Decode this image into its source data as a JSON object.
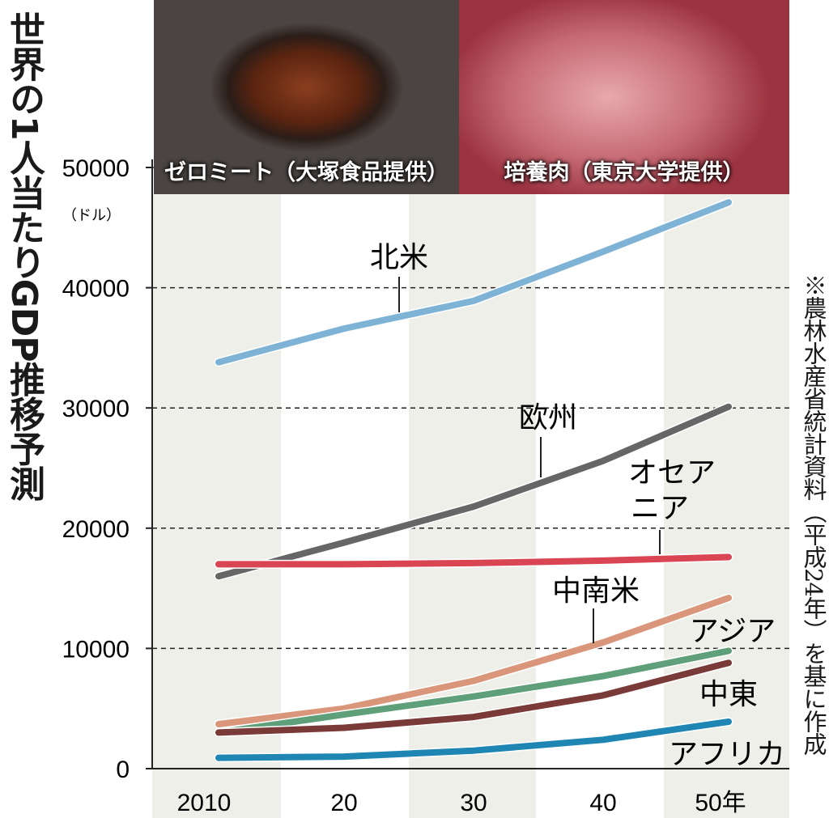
{
  "title": "世界の1人当たりGDP推移予測",
  "note": "※農林水産省統計資料（平成24年）を基に作成",
  "photos": [
    {
      "caption": "ゼロミート（大塚食品提供）"
    },
    {
      "caption": "培養肉（東京大学提供）"
    }
  ],
  "chart_data": {
    "type": "line",
    "title": "世界の1人当たりGDP推移予測",
    "ylabel": "（ドル）",
    "categories": [
      "2010",
      "20",
      "30",
      "40",
      "50年"
    ],
    "ylim": [
      0,
      50000
    ],
    "yticks": [
      "0",
      "10000",
      "20000",
      "30000",
      "40000",
      "50000"
    ],
    "grid": "dashed horizontal at 10000 steps",
    "series": [
      {
        "name": "北米",
        "color": "#7fb3d6",
        "values": [
          33800,
          36600,
          38900,
          43000,
          47100
        ]
      },
      {
        "name": "欧州",
        "color": "#666666",
        "values": [
          16000,
          18800,
          21800,
          25600,
          30100
        ]
      },
      {
        "name": "オセアニア",
        "color": "#d94552",
        "values": [
          17000,
          17000,
          17100,
          17300,
          17600
        ]
      },
      {
        "name": "中南米",
        "color": "#d9967a",
        "values": [
          3700,
          5000,
          7300,
          10500,
          14200
        ]
      },
      {
        "name": "アジア",
        "color": "#5f9f7a",
        "values": [
          3000,
          4500,
          6000,
          7700,
          9800
        ]
      },
      {
        "name": "中東",
        "color": "#7a3a38",
        "values": [
          3000,
          3400,
          4300,
          6100,
          8800
        ]
      },
      {
        "name": "アフリカ",
        "color": "#1f86b4",
        "values": [
          900,
          1000,
          1500,
          2400,
          3900
        ]
      }
    ]
  }
}
